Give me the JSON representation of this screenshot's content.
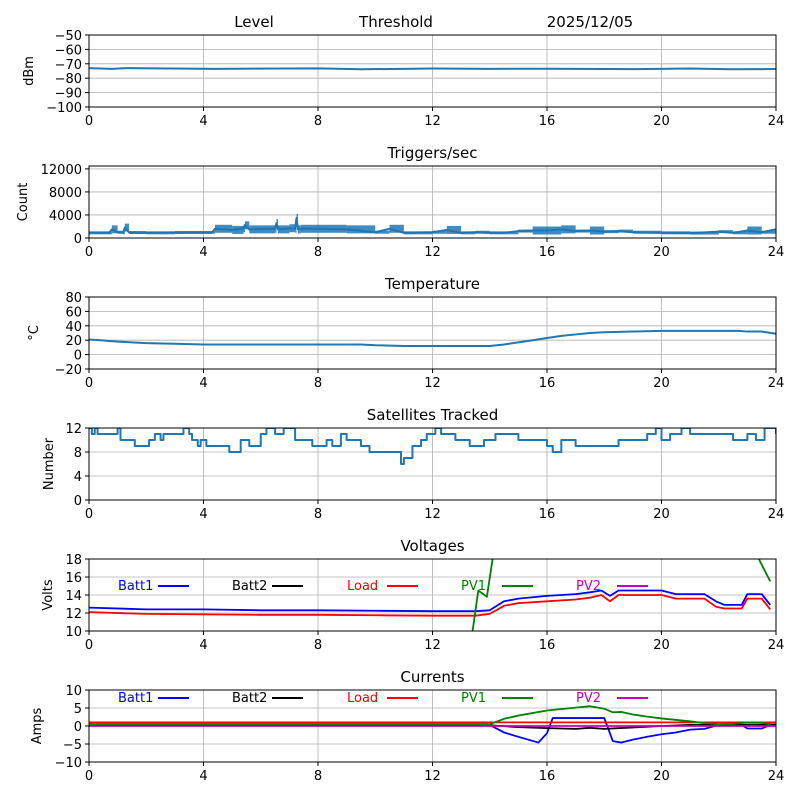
{
  "header": {
    "labels": [
      "Level",
      "Threshold",
      "2025/12/05"
    ]
  },
  "chart_data": [
    {
      "id": "level",
      "type": "line",
      "title": "",
      "xlabel": "",
      "ylabel": "dBm",
      "xlim": [
        0,
        24
      ],
      "ylim": [
        -100,
        -50
      ],
      "xticks": [
        0,
        4,
        8,
        12,
        16,
        20,
        24
      ],
      "yticks": [
        -100,
        -90,
        -80,
        -70,
        -60,
        -50
      ],
      "ytick_labels": [
        "−100",
        "−90",
        "−80",
        "−70",
        "−60",
        "−50"
      ],
      "grid": true,
      "series": [
        {
          "name": "Level",
          "color": "#1f77b4",
          "x": [
            0,
            0.8,
            1.3,
            4.4,
            8,
            9.5,
            12,
            14,
            16,
            19,
            21,
            22.4,
            24
          ],
          "y": [
            -73,
            -73.5,
            -73,
            -73.5,
            -73.2,
            -73.8,
            -73.3,
            -73.5,
            -73.4,
            -73.7,
            -73.3,
            -73.8,
            -73.6
          ]
        }
      ]
    },
    {
      "id": "triggers",
      "type": "line",
      "title": "Triggers/sec",
      "xlabel": "",
      "ylabel": "Count",
      "xlim": [
        0,
        24
      ],
      "ylim": [
        0,
        12500
      ],
      "xticks": [
        0,
        4,
        8,
        12,
        16,
        20,
        24
      ],
      "yticks": [
        0,
        4000,
        8000,
        12000
      ],
      "ytick_labels": [
        "0",
        "4000",
        "8000",
        "12000"
      ],
      "grid": true,
      "series": [
        {
          "name": "Triggers",
          "color": "#1f77b4",
          "x": [
            0,
            0.7,
            0.8,
            1.0,
            1.2,
            1.25,
            1.4,
            2,
            3,
            4.3,
            4.4,
            5,
            5.4,
            5.45,
            5.6,
            6.5,
            6.55,
            6.6,
            7.0,
            7.2,
            7.25,
            7.3,
            7.4,
            8,
            9,
            10,
            10.5,
            11,
            12,
            12.5,
            13,
            13.5,
            14,
            14.5,
            15,
            15.5,
            16,
            16.5,
            17,
            17.5,
            18,
            18.5,
            19,
            20,
            21,
            22,
            22.5,
            23,
            23.5,
            24
          ],
          "y": [
            900,
            900,
            1500,
            1000,
            900,
            1800,
            950,
            900,
            950,
            1000,
            1600,
            1400,
            1700,
            2200,
            1500,
            1600,
            2600,
            1500,
            1700,
            1600,
            3500,
            1500,
            1600,
            1600,
            1500,
            1000,
            1600,
            900,
            1000,
            1400,
            900,
            1000,
            900,
            900,
            1200,
            1300,
            1300,
            1500,
            1200,
            1300,
            1100,
            1200,
            1000,
            900,
            850,
            1100,
            900,
            1300,
            1000,
            1500
          ]
        }
      ]
    },
    {
      "id": "temperature",
      "type": "line",
      "title": "Temperature",
      "xlabel": "",
      "ylabel": "°C",
      "xlim": [
        0,
        24
      ],
      "ylim": [
        -20,
        80
      ],
      "xticks": [
        0,
        4,
        8,
        12,
        16,
        20,
        24
      ],
      "yticks": [
        -20,
        0,
        20,
        40,
        60,
        80
      ],
      "ytick_labels": [
        "−20",
        "0",
        "20",
        "40",
        "60",
        "80"
      ],
      "grid": true,
      "series": [
        {
          "name": "Temperature",
          "color": "#1f77b4",
          "x": [
            0,
            0.4,
            1,
            2,
            3,
            4,
            6,
            8,
            9.5,
            10,
            11,
            12,
            13,
            14,
            14.5,
            15,
            15.5,
            16,
            16.5,
            17,
            17.5,
            18,
            19,
            20,
            21,
            22,
            22.7,
            23,
            23.5,
            24
          ],
          "y": [
            21,
            20,
            18,
            16,
            15,
            14,
            14,
            14,
            14,
            13,
            12,
            12,
            12,
            12,
            14,
            17,
            20,
            23,
            26,
            28,
            30,
            31,
            32,
            33,
            33,
            33,
            33,
            32,
            32,
            29
          ]
        }
      ]
    },
    {
      "id": "satellites",
      "type": "line",
      "title": "Satellites Tracked",
      "xlabel": "",
      "ylabel": "Number",
      "xlim": [
        0,
        24
      ],
      "ylim": [
        0,
        12
      ],
      "xticks": [
        0,
        4,
        8,
        12,
        16,
        20,
        24
      ],
      "yticks": [
        0,
        4,
        8,
        12
      ],
      "ytick_labels": [
        "0",
        "4",
        "8",
        "12"
      ],
      "grid": true,
      "series": [
        {
          "name": "Satellites",
          "color": "#1f77b4",
          "x": [
            0,
            0.1,
            0.2,
            0.3,
            0.9,
            1.0,
            1.1,
            1.6,
            2.1,
            2.3,
            2.5,
            2.6,
            3.3,
            3.5,
            3.6,
            3.8,
            3.9,
            4.1,
            4.5,
            4.9,
            5.3,
            5.6,
            6.0,
            6.2,
            6.5,
            6.8,
            7.2,
            7.5,
            7.8,
            8.0,
            8.3,
            8.5,
            8.8,
            9.0,
            9.5,
            9.8,
            10.0,
            10.5,
            10.9,
            11.0,
            11.3,
            11.6,
            11.8,
            12.1,
            12.3,
            12.8,
            13.0,
            13.3,
            13.5,
            13.8,
            14.2,
            14.5,
            15.0,
            15.5,
            16.0,
            16.2,
            16.5,
            17.0,
            17.5,
            18.0,
            18.5,
            19.0,
            19.5,
            19.8,
            20.0,
            20.3,
            20.7,
            21.0,
            21.5,
            22.0,
            22.5,
            23.0,
            23.3,
            23.6,
            24.0
          ],
          "y": [
            12,
            11,
            12,
            11,
            11,
            12,
            10,
            9,
            10,
            11,
            10,
            11,
            12,
            11,
            10,
            9,
            10,
            9,
            9,
            8,
            10,
            9,
            11,
            12,
            11,
            12,
            10,
            10,
            9,
            9,
            10,
            9,
            11,
            10,
            9,
            8,
            8,
            8,
            6,
            7,
            9,
            10,
            11,
            12,
            11,
            10,
            10,
            9,
            9,
            10,
            11,
            11,
            10,
            10,
            9,
            8,
            10,
            9,
            9,
            9,
            10,
            10,
            11,
            12,
            10,
            11,
            12,
            11,
            11,
            11,
            10,
            11,
            10,
            12,
            11
          ]
        }
      ]
    },
    {
      "id": "voltages",
      "type": "line",
      "title": "Voltages",
      "xlabel": "",
      "ylabel": "Volts",
      "xlim": [
        0,
        24
      ],
      "ylim": [
        10,
        18
      ],
      "xticks": [
        0,
        4,
        8,
        12,
        16,
        20,
        24
      ],
      "yticks": [
        10,
        12,
        14,
        16,
        18
      ],
      "ytick_labels": [
        "10",
        "12",
        "14",
        "16",
        "18"
      ],
      "grid": true,
      "legend": "top, single row",
      "series": [
        {
          "name": "Batt1",
          "color": "#0000ff",
          "x": [
            0,
            2,
            4,
            6,
            8,
            10,
            12,
            13.5,
            14,
            14.5,
            15,
            16,
            17,
            17.5,
            17.9,
            18.2,
            18.5,
            19,
            20,
            20.5,
            21,
            21.5,
            21.9,
            22.2,
            22.5,
            22.8,
            23.0,
            23.5,
            23.8
          ],
          "y": [
            12.6,
            12.4,
            12.4,
            12.3,
            12.3,
            12.25,
            12.2,
            12.2,
            12.3,
            13.3,
            13.6,
            13.9,
            14.1,
            14.3,
            14.5,
            13.9,
            14.5,
            14.5,
            14.5,
            14.1,
            14.1,
            14.1,
            13.3,
            12.9,
            12.9,
            12.9,
            14.1,
            14.1,
            12.9
          ]
        },
        {
          "name": "Batt2",
          "color": "#000000",
          "x": [],
          "y": []
        },
        {
          "name": "Load",
          "color": "#ff0000",
          "x": [
            0,
            2,
            4,
            6,
            8,
            10,
            12,
            13.5,
            14,
            14.5,
            15,
            16,
            17,
            17.5,
            17.9,
            18.2,
            18.5,
            19,
            20,
            20.5,
            21,
            21.5,
            21.9,
            22.2,
            22.5,
            22.8,
            23.0,
            23.5,
            23.8
          ],
          "y": [
            12.1,
            11.9,
            11.85,
            11.8,
            11.8,
            11.75,
            11.7,
            11.7,
            11.9,
            12.8,
            13.1,
            13.3,
            13.5,
            13.7,
            14.0,
            13.3,
            14.0,
            14.0,
            14.0,
            13.6,
            13.6,
            13.6,
            12.7,
            12.5,
            12.5,
            12.5,
            13.6,
            13.6,
            12.4
          ]
        },
        {
          "name": "PV1",
          "color": "#008000",
          "x": [
            13.4,
            13.6,
            13.9,
            14.1,
            15.6,
            22,
            23.4,
            23.8
          ],
          "y": [
            10,
            14.5,
            13.8,
            18,
            30,
            30,
            18,
            15.5
          ]
        },
        {
          "name": "PV2",
          "color": "#bf00bf",
          "x": [],
          "y": []
        }
      ]
    },
    {
      "id": "currents",
      "type": "line",
      "title": "Currents",
      "xlabel": "",
      "ylabel": "Amps",
      "xlim": [
        0,
        24
      ],
      "ylim": [
        -10,
        10
      ],
      "xticks": [
        0,
        4,
        8,
        12,
        16,
        20,
        24
      ],
      "yticks": [
        -10,
        -5,
        0,
        5,
        10
      ],
      "ytick_labels": [
        "−10",
        "−5",
        "0",
        "5",
        "10"
      ],
      "grid": true,
      "legend": "top, single row",
      "series": [
        {
          "name": "Batt1",
          "color": "#0000ff",
          "x": [
            0,
            13,
            14,
            14.5,
            15,
            15.7,
            16.0,
            16.2,
            17,
            18.0,
            18.3,
            18.6,
            19,
            19.5,
            20,
            20.5,
            21,
            21.5,
            22,
            22.5,
            22.8,
            23.0,
            23.5,
            23.8
          ],
          "y": [
            0.3,
            0.3,
            0.3,
            -1.8,
            -3.0,
            -4.6,
            -2.0,
            2.2,
            2.2,
            2.2,
            -4.2,
            -4.6,
            -3.8,
            -3.0,
            -2.3,
            -1.8,
            -1.0,
            -0.8,
            0.3,
            0.3,
            0.3,
            -0.7,
            -0.7,
            0.3
          ]
        },
        {
          "name": "Batt2",
          "color": "#000000",
          "x": [
            0,
            13,
            14,
            15,
            16,
            17,
            17.5,
            18,
            19,
            20,
            21,
            24
          ],
          "y": [
            0.4,
            0.4,
            0.2,
            -0.3,
            -0.6,
            -0.8,
            -0.5,
            -0.8,
            -0.4,
            0.0,
            0.3,
            0.4
          ]
        },
        {
          "name": "Load",
          "color": "#ff0000",
          "x": [
            0,
            4,
            8,
            12,
            16,
            20,
            24
          ],
          "y": [
            1.0,
            1.0,
            1.0,
            1.0,
            1.0,
            1.0,
            1.0
          ]
        },
        {
          "name": "PV1",
          "color": "#008000",
          "x": [
            0,
            13,
            14,
            14.5,
            15,
            16,
            17,
            17.5,
            18,
            18.3,
            18.6,
            19,
            19.5,
            20,
            21,
            21.5,
            22,
            22.5,
            23,
            23.4,
            23.8
          ],
          "y": [
            0.5,
            0.5,
            0.5,
            2.0,
            2.9,
            4.3,
            5.1,
            5.5,
            4.8,
            3.8,
            3.9,
            3.2,
            2.6,
            2.1,
            1.3,
            0.8,
            0.5,
            0.6,
            1.0,
            1.0,
            0.5
          ]
        },
        {
          "name": "PV2",
          "color": "#bf00bf",
          "x": [
            0,
            24
          ],
          "y": [
            0.0,
            0.0
          ]
        }
      ]
    }
  ]
}
